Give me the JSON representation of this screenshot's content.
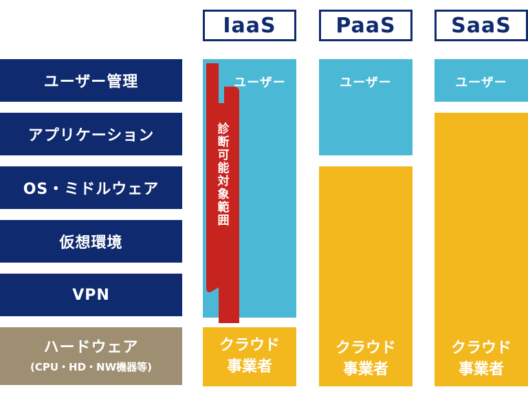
{
  "layers": [
    {
      "label": "ユーザー管理"
    },
    {
      "label": "アプリケーション"
    },
    {
      "label": "OS・ミドルウェア"
    },
    {
      "label": "仮想環境"
    },
    {
      "label": "VPN"
    }
  ],
  "hardware": {
    "label": "ハードウェア",
    "sub": "(CPU・HD・NW機器等)"
  },
  "models": [
    {
      "name": "IaaS",
      "user_label": "ユーザー",
      "vendor_line1": "クラウド",
      "vendor_line2": "事業者"
    },
    {
      "name": "PaaS",
      "user_label": "ユーザー",
      "vendor_line1": "クラウド",
      "vendor_line2": "事業者"
    },
    {
      "name": "SaaS",
      "user_label": "ユーザー",
      "vendor_line1": "クラウド",
      "vendor_line2": "事業者"
    }
  ],
  "scope_label": "診断可能対象範囲",
  "colors": {
    "navy": "#0f2a6e",
    "user_blue": "#4bb8d6",
    "vendor_yellow": "#f2b81e",
    "hardware_tan": "#9f8f72",
    "scope_red": "#c8241f"
  }
}
